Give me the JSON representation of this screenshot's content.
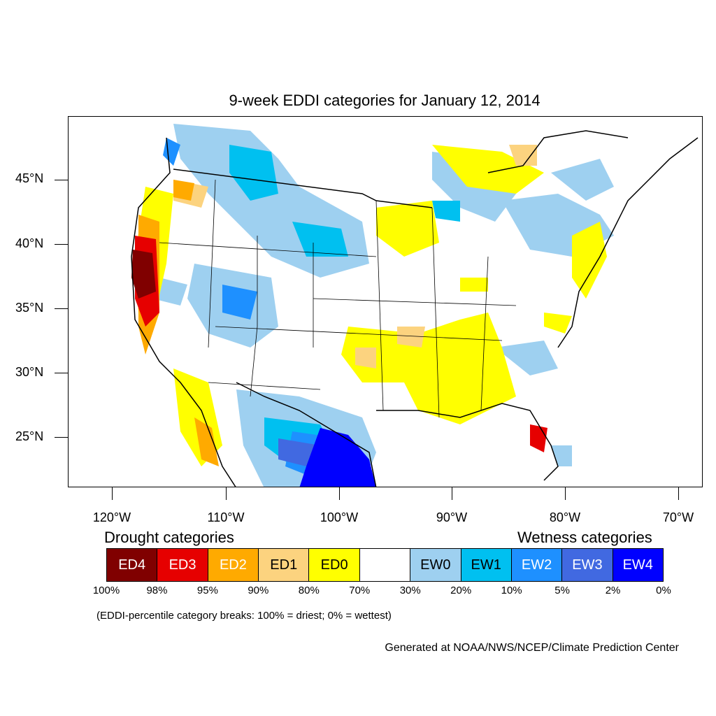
{
  "title": "9-week EDDI categories for January 12, 2014",
  "lat_labels": [
    "45°N",
    "40°N",
    "35°N",
    "30°N",
    "25°N"
  ],
  "lon_labels": [
    "120°W",
    "110°W",
    "100°W",
    "90°W",
    "80°W",
    "70°W"
  ],
  "drought_heading": "Drought categories",
  "wetness_heading": "Wetness categories",
  "legend": [
    {
      "label": "ED4",
      "color": "#800000",
      "text_color": "#ffffff"
    },
    {
      "label": "ED3",
      "color": "#e60000",
      "text_color": "#ffffff"
    },
    {
      "label": "ED2",
      "color": "#ffaa00",
      "text_color": "#ffffff"
    },
    {
      "label": "ED1",
      "color": "#fcd37f",
      "text_color": "#000000"
    },
    {
      "label": "ED0",
      "color": "#ffff00",
      "text_color": "#000000"
    },
    {
      "label": "",
      "color": "#ffffff",
      "text_color": "#000000"
    },
    {
      "label": "EW0",
      "color": "#9ed0f0",
      "text_color": "#000000"
    },
    {
      "label": "EW1",
      "color": "#00c0f0",
      "text_color": "#000000"
    },
    {
      "label": "EW2",
      "color": "#1e90ff",
      "text_color": "#ffffff"
    },
    {
      "label": "EW3",
      "color": "#4169e1",
      "text_color": "#ffffff"
    },
    {
      "label": "EW4",
      "color": "#0000ff",
      "text_color": "#ffffff"
    }
  ],
  "percent_breaks": [
    "100%",
    "98%",
    "95%",
    "90%",
    "80%",
    "70%",
    "30%",
    "20%",
    "10%",
    "5%",
    "2%",
    "0%"
  ],
  "note": "(EDDI-percentile category breaks: 100% = driest; 0% = wettest)",
  "credit": "Generated at NOAA/NWS/NCEP/Climate Prediction Center"
}
